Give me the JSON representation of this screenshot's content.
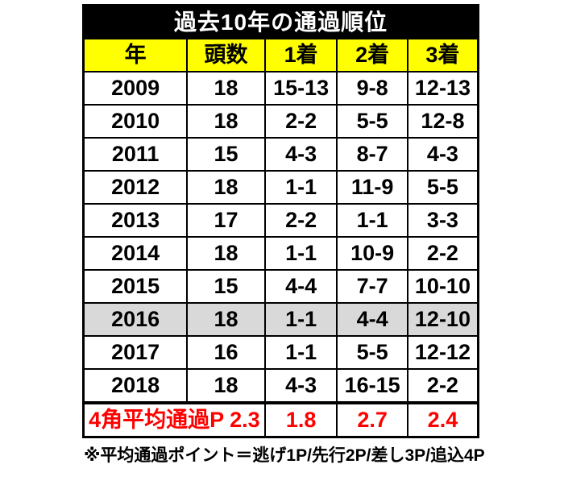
{
  "colors": {
    "title_bg": "#000000",
    "title_text": "#ffffff",
    "header_bg": "#ffff00",
    "header_text": "#000000",
    "row_bg": "#ffffff",
    "highlight_row_bg": "#d9d9d9",
    "summary_text": "#ff0000",
    "border": "#000000"
  },
  "table": {
    "title": "過去10年の通過順位",
    "headers": [
      "年",
      "頭数",
      "1着",
      "2着",
      "3着"
    ],
    "rows": [
      {
        "cells": [
          "2009",
          "18",
          "15-13",
          "9-8",
          "12-13"
        ],
        "highlight": false
      },
      {
        "cells": [
          "2010",
          "18",
          "2-2",
          "5-5",
          "12-8"
        ],
        "highlight": false
      },
      {
        "cells": [
          "2011",
          "15",
          "4-3",
          "8-7",
          "4-3"
        ],
        "highlight": false
      },
      {
        "cells": [
          "2012",
          "18",
          "1-1",
          "11-9",
          "5-5"
        ],
        "highlight": false
      },
      {
        "cells": [
          "2013",
          "17",
          "2-2",
          "1-1",
          "3-3"
        ],
        "highlight": false
      },
      {
        "cells": [
          "2014",
          "18",
          "1-1",
          "10-9",
          "2-2"
        ],
        "highlight": false
      },
      {
        "cells": [
          "2015",
          "15",
          "4-4",
          "7-7",
          "10-10"
        ],
        "highlight": false
      },
      {
        "cells": [
          "2016",
          "18",
          "1-1",
          "4-4",
          "12-10"
        ],
        "highlight": true
      },
      {
        "cells": [
          "2017",
          "16",
          "1-1",
          "5-5",
          "12-12"
        ],
        "highlight": false
      },
      {
        "cells": [
          "2018",
          "18",
          "4-3",
          "16-15",
          "2-2"
        ],
        "highlight": false
      }
    ],
    "summary": {
      "label": "4角平均通過P 2.3",
      "first": "1.8",
      "second": "2.7",
      "third": "2.4"
    },
    "footnote": "※平均通過ポイント＝逃げ1P/先行2P/差し3P/追込4P"
  },
  "chart_data": {
    "type": "table",
    "title": "過去10年の通過順位",
    "columns": [
      "年",
      "頭数",
      "1着",
      "2着",
      "3着"
    ],
    "rows": [
      [
        "2009",
        "18",
        "15-13",
        "9-8",
        "12-13"
      ],
      [
        "2010",
        "18",
        "2-2",
        "5-5",
        "12-8"
      ],
      [
        "2011",
        "15",
        "4-3",
        "8-7",
        "4-3"
      ],
      [
        "2012",
        "18",
        "1-1",
        "11-9",
        "5-5"
      ],
      [
        "2013",
        "17",
        "2-2",
        "1-1",
        "3-3"
      ],
      [
        "2014",
        "18",
        "1-1",
        "10-9",
        "2-2"
      ],
      [
        "2015",
        "15",
        "4-4",
        "7-7",
        "10-10"
      ],
      [
        "2016",
        "18",
        "1-1",
        "4-4",
        "12-10"
      ],
      [
        "2017",
        "16",
        "1-1",
        "5-5",
        "12-12"
      ],
      [
        "2018",
        "18",
        "4-3",
        "16-15",
        "2-2"
      ]
    ],
    "summary_row": [
      "4角平均通過P 2.3",
      "1.8",
      "2.7",
      "2.4"
    ],
    "highlighted_row": "2016",
    "footnote": "※平均通過ポイント＝逃げ1P/先行2P/差し3P/追込4P"
  }
}
